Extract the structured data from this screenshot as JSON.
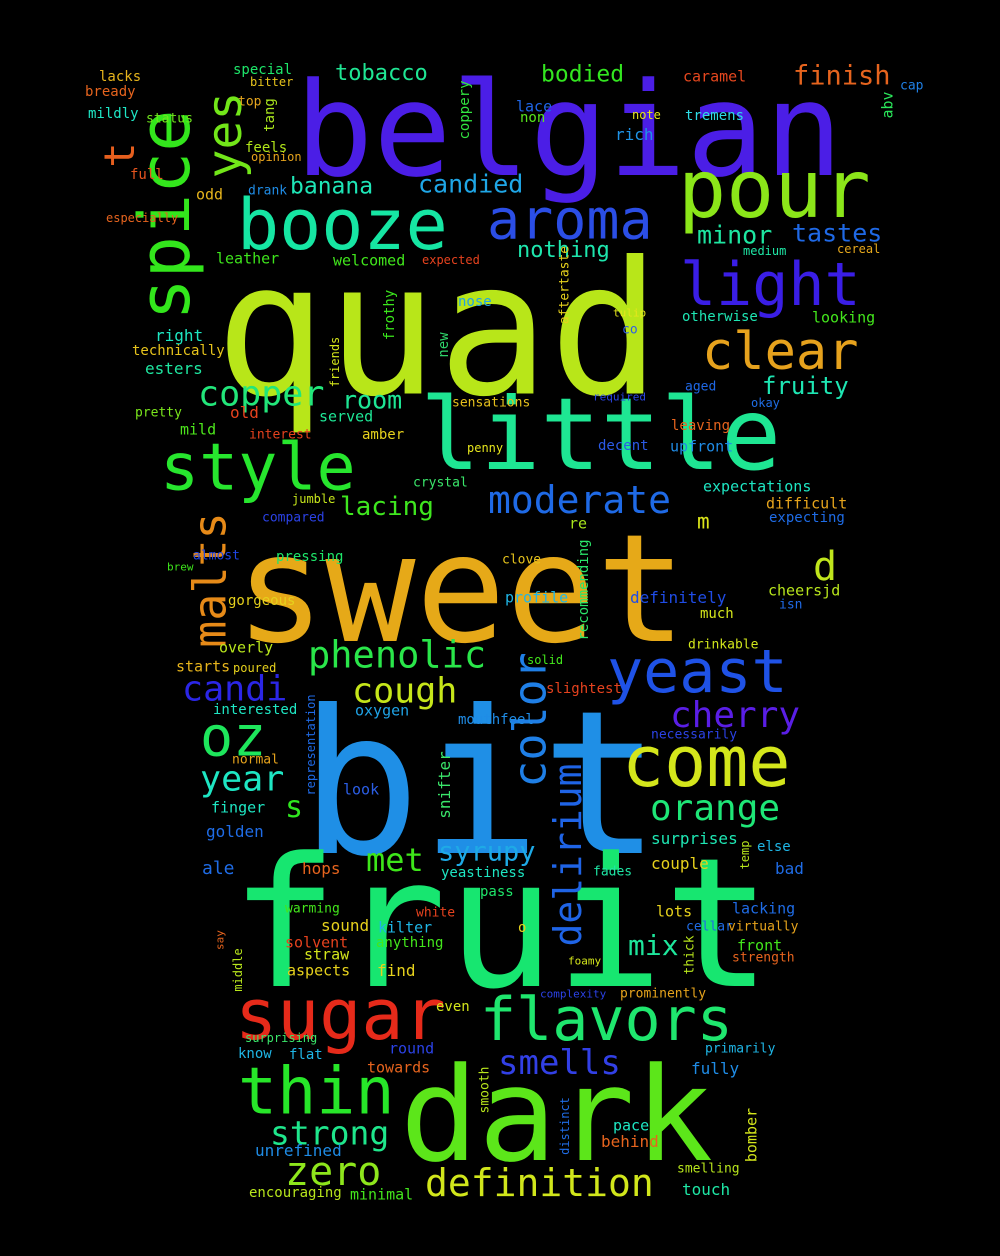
{
  "background": "#000000",
  "words": [
    {
      "text": "quad",
      "color": "#b8e619"
    },
    {
      "text": "sweet",
      "color": "#e6a918"
    },
    {
      "text": "bit",
      "color": "#1f8fe6"
    },
    {
      "text": "fruit",
      "color": "#17e670"
    },
    {
      "text": "belgian",
      "color": "#4b1ee6"
    },
    {
      "text": "dark",
      "color": "#5ce61a"
    },
    {
      "text": "little",
      "color": "#1ee693"
    },
    {
      "text": "pour",
      "color": "#8be619"
    },
    {
      "text": "booze",
      "color": "#16e6a3"
    },
    {
      "text": "sugar",
      "color": "#e62a1a"
    },
    {
      "text": "spice",
      "color": "#33e61c"
    },
    {
      "text": "yes",
      "color": "#72e619"
    },
    {
      "text": "aroma",
      "color": "#2b4ee6"
    },
    {
      "text": "light",
      "color": "#3a1ee6"
    },
    {
      "text": "clear",
      "color": "#e6a21d"
    },
    {
      "text": "style",
      "color": "#27e62e"
    },
    {
      "text": "flavors",
      "color": "#1fe66e"
    },
    {
      "text": "come",
      "color": "#d4e61b"
    },
    {
      "text": "yeast",
      "color": "#1f52e6"
    },
    {
      "text": "thin",
      "color": "#27e629"
    },
    {
      "text": "oz",
      "color": "#1ee65c"
    },
    {
      "text": "malts",
      "color": "#e68a18"
    },
    {
      "text": "color",
      "color": "#1f7fe6"
    },
    {
      "text": "delirium",
      "color": "#1f64e6"
    },
    {
      "text": "moderate",
      "color": "#1f6ae6"
    },
    {
      "text": "copper",
      "color": "#22e67a"
    },
    {
      "text": "candi",
      "color": "#2b26e6"
    },
    {
      "text": "phenolic",
      "color": "#2ae64a"
    },
    {
      "text": "cough",
      "color": "#c6e61a"
    },
    {
      "text": "cherry",
      "color": "#5a1ee6"
    },
    {
      "text": "orange",
      "color": "#1ee677"
    },
    {
      "text": "year",
      "color": "#1ee6c3"
    },
    {
      "text": "zero",
      "color": "#8ee61c"
    },
    {
      "text": "definition",
      "color": "#d1e61b"
    },
    {
      "text": "smells",
      "color": "#3240e6"
    },
    {
      "text": "strong",
      "color": "#1fe68c"
    },
    {
      "text": "met",
      "color": "#3ee61a"
    },
    {
      "text": "syrupy",
      "color": "#1eaae6"
    },
    {
      "text": "mix",
      "color": "#1ee69c"
    },
    {
      "text": "room",
      "color": "#1ee695"
    },
    {
      "text": "lacing",
      "color": "#3fe61f"
    },
    {
      "text": "banana",
      "color": "#1ee6b7"
    },
    {
      "text": "candied",
      "color": "#1fa6e6"
    },
    {
      "text": "minor",
      "color": "#1ee6a1"
    },
    {
      "text": "tastes",
      "color": "#1f69e6"
    },
    {
      "text": "fruity",
      "color": "#1ee6b3"
    },
    {
      "text": "nothing",
      "color": "#1ee6ad"
    },
    {
      "text": "finish",
      "color": "#e6641e"
    },
    {
      "text": "bodied",
      "color": "#33e620"
    },
    {
      "text": "tobacco",
      "color": "#1fe694"
    },
    {
      "text": "t",
      "color": "#e65f1e"
    },
    {
      "text": "d",
      "color": "#c0e61c"
    },
    {
      "text": "s",
      "color": "#2fe61f"
    },
    {
      "text": "m",
      "color": "#dce61a"
    },
    {
      "text": "lace",
      "color": "#1f65e6"
    },
    {
      "text": "non",
      "color": "#58e61c"
    },
    {
      "text": "rich",
      "color": "#1f93e6"
    },
    {
      "text": "note",
      "color": "#e6e61c"
    },
    {
      "text": "tremens",
      "color": "#2edce6"
    },
    {
      "text": "abv",
      "color": "#2ae65a"
    },
    {
      "text": "caramel",
      "color": "#e6471e"
    },
    {
      "text": "cap",
      "color": "#1f80e6"
    },
    {
      "text": "coppery",
      "color": "#32e640"
    },
    {
      "text": "lacks",
      "color": "#e6b41c"
    },
    {
      "text": "bready",
      "color": "#e6641e"
    },
    {
      "text": "mildly",
      "color": "#1ee6c5"
    },
    {
      "text": "status",
      "color": "#6fe61c"
    },
    {
      "text": "special",
      "color": "#1ee66a"
    },
    {
      "text": "bitter",
      "color": "#e6c31c"
    },
    {
      "text": "top",
      "color": "#e6a61e"
    },
    {
      "text": "tang",
      "color": "#a9e61d"
    },
    {
      "text": "opinion",
      "color": "#e6a31c"
    },
    {
      "text": "feels",
      "color": "#b2e61a"
    },
    {
      "text": "full",
      "color": "#e6551e"
    },
    {
      "text": "drank",
      "color": "#1f8ce6"
    },
    {
      "text": "odd",
      "color": "#e6b41c"
    },
    {
      "text": "especially",
      "color": "#e6641e"
    },
    {
      "text": "medium",
      "color": "#1ee6a5"
    },
    {
      "text": "cereal",
      "color": "#e6a81c"
    },
    {
      "text": "expected",
      "color": "#e6421e"
    },
    {
      "text": "welcomed",
      "color": "#41e61c"
    },
    {
      "text": "leather",
      "color": "#3ee61c"
    },
    {
      "text": "aftertaste",
      "color": "#e6d11c"
    },
    {
      "text": "nose",
      "color": "#1fa3e6"
    },
    {
      "text": "tulip",
      "color": "#e6e61c"
    },
    {
      "text": "otherwise",
      "color": "#1ee6b3"
    },
    {
      "text": "looking",
      "color": "#43e61c"
    },
    {
      "text": "co",
      "color": "#2f5ee6"
    },
    {
      "text": "right",
      "color": "#1ee6c2"
    },
    {
      "text": "technically",
      "color": "#e6c31c"
    },
    {
      "text": "frothy",
      "color": "#3ae61c"
    },
    {
      "text": "friends",
      "color": "#d4e61b"
    },
    {
      "text": "new",
      "color": "#2ed46a"
    },
    {
      "text": "esters",
      "color": "#1ee6a0"
    },
    {
      "text": "pretty",
      "color": "#7ae61c"
    },
    {
      "text": "old",
      "color": "#e6421e"
    },
    {
      "text": "served",
      "color": "#1ee696"
    },
    {
      "text": "sensations",
      "color": "#e6c01c"
    },
    {
      "text": "required",
      "color": "#2b46e6"
    },
    {
      "text": "aged",
      "color": "#1f68e6"
    },
    {
      "text": "okay",
      "color": "#1f6ee6"
    },
    {
      "text": "mild",
      "color": "#4de61c"
    },
    {
      "text": "interest",
      "color": "#e6421e"
    },
    {
      "text": "amber",
      "color": "#e6d11c"
    },
    {
      "text": "leaving",
      "color": "#e6641e"
    },
    {
      "text": "upfront",
      "color": "#1f8ce6"
    },
    {
      "text": "decent",
      "color": "#2b5ae6"
    },
    {
      "text": "penny",
      "color": "#e6e61c"
    },
    {
      "text": "expectations",
      "color": "#1ee6c3"
    },
    {
      "text": "crystal",
      "color": "#3ae66a"
    },
    {
      "text": "difficult",
      "color": "#e6a41c"
    },
    {
      "text": "jumble",
      "color": "#c6e61b"
    },
    {
      "text": "compared",
      "color": "#2b42e6"
    },
    {
      "text": "expecting",
      "color": "#1f6ce6"
    },
    {
      "text": "re",
      "color": "#a8e61c"
    },
    {
      "text": "almost",
      "color": "#1f46e6"
    },
    {
      "text": "pressing",
      "color": "#1ee66a"
    },
    {
      "text": "clove",
      "color": "#e6c31c"
    },
    {
      "text": "cheersjd",
      "color": "#b8e61c"
    },
    {
      "text": "isn",
      "color": "#1f6ae6"
    },
    {
      "text": "brew",
      "color": "#3ee61c"
    },
    {
      "text": "profile",
      "color": "#1fb6e6"
    },
    {
      "text": "recommending",
      "color": "#2ae66a"
    },
    {
      "text": "definitely",
      "color": "#1f4ce6"
    },
    {
      "text": "gorgeous",
      "color": "#e6d11c"
    },
    {
      "text": "much",
      "color": "#d4e61b"
    },
    {
      "text": "overly",
      "color": "#b8e61c"
    },
    {
      "text": "drinkable",
      "color": "#d1e61b"
    },
    {
      "text": "starts",
      "color": "#e6b41c"
    },
    {
      "text": "poured",
      "color": "#e6d11c"
    },
    {
      "text": "solid",
      "color": "#43e61c"
    },
    {
      "text": "slightest",
      "color": "#e6421e"
    },
    {
      "text": "interested",
      "color": "#1ee6c3"
    },
    {
      "text": "oxygen",
      "color": "#1fa3e6"
    },
    {
      "text": "mouthfeel",
      "color": "#1f8ce6"
    },
    {
      "text": "necessarily",
      "color": "#2b42e6"
    },
    {
      "text": "representation",
      "color": "#1f6ae6"
    },
    {
      "text": "normal",
      "color": "#e6a31c"
    },
    {
      "text": "look",
      "color": "#2b5ee6"
    },
    {
      "text": "finger",
      "color": "#1ee6c3"
    },
    {
      "text": "snifter",
      "color": "#3ae66a"
    },
    {
      "text": "golden",
      "color": "#1f6ce6"
    },
    {
      "text": "surprises",
      "color": "#1ee6b3"
    },
    {
      "text": "else",
      "color": "#1fb6e6"
    },
    {
      "text": "ale",
      "color": "#1f6ce6"
    },
    {
      "text": "hops",
      "color": "#e6641e"
    },
    {
      "text": "couple",
      "color": "#e6d11c"
    },
    {
      "text": "temp",
      "color": "#b8e61c"
    },
    {
      "text": "bad",
      "color": "#1f6ce6"
    },
    {
      "text": "yeastiness",
      "color": "#1ee6c3"
    },
    {
      "text": "fades",
      "color": "#1ee6a5"
    },
    {
      "text": "pass",
      "color": "#1ee66a"
    },
    {
      "text": "warming",
      "color": "#43e61c"
    },
    {
      "text": "white",
      "color": "#e6421e"
    },
    {
      "text": "kilter",
      "color": "#1fb6e6"
    },
    {
      "text": "o",
      "color": "#e6d11c"
    },
    {
      "text": "lots",
      "color": "#e6d11c"
    },
    {
      "text": "lacking",
      "color": "#1f6ce6"
    },
    {
      "text": "sound",
      "color": "#e6d11c"
    },
    {
      "text": "cellar",
      "color": "#1f6ce6"
    },
    {
      "text": "virtually",
      "color": "#e6a31c"
    },
    {
      "text": "say",
      "color": "#e6641e"
    },
    {
      "text": "solvent",
      "color": "#e6421e"
    },
    {
      "text": "anything",
      "color": "#43e61c"
    },
    {
      "text": "front",
      "color": "#43e61c"
    },
    {
      "text": "straw",
      "color": "#d4e61b"
    },
    {
      "text": "thick",
      "color": "#b8e61c"
    },
    {
      "text": "middle",
      "color": "#b8e61c"
    },
    {
      "text": "foamy",
      "color": "#d4e61b"
    },
    {
      "text": "strength",
      "color": "#e6641e"
    },
    {
      "text": "aspects",
      "color": "#e6d11c"
    },
    {
      "text": "find",
      "color": "#e6d11c"
    },
    {
      "text": "complexity",
      "color": "#2b42e6"
    },
    {
      "text": "prominently",
      "color": "#e6a31c"
    },
    {
      "text": "even",
      "color": "#d4e61b"
    },
    {
      "text": "surprising",
      "color": "#3ae66a"
    },
    {
      "text": "primarily",
      "color": "#1fb6e6"
    },
    {
      "text": "know",
      "color": "#1fb6e6"
    },
    {
      "text": "flat",
      "color": "#1fb6e6"
    },
    {
      "text": "round",
      "color": "#2b42e6"
    },
    {
      "text": "towards",
      "color": "#e6641e"
    },
    {
      "text": "smooth",
      "color": "#b8e61c"
    },
    {
      "text": "fully",
      "color": "#1f8ce6"
    },
    {
      "text": "distinct",
      "color": "#1f6ce6"
    },
    {
      "text": "pace",
      "color": "#1ee6c3"
    },
    {
      "text": "behind",
      "color": "#e6641e"
    },
    {
      "text": "bomber",
      "color": "#d4e61b"
    },
    {
      "text": "unrefined",
      "color": "#1f8ce6"
    },
    {
      "text": "smelling",
      "color": "#b8e61c"
    },
    {
      "text": "encouraging",
      "color": "#b8e61c"
    },
    {
      "text": "minimal",
      "color": "#43e61c"
    },
    {
      "text": "touch",
      "color": "#1ee6a5"
    }
  ]
}
